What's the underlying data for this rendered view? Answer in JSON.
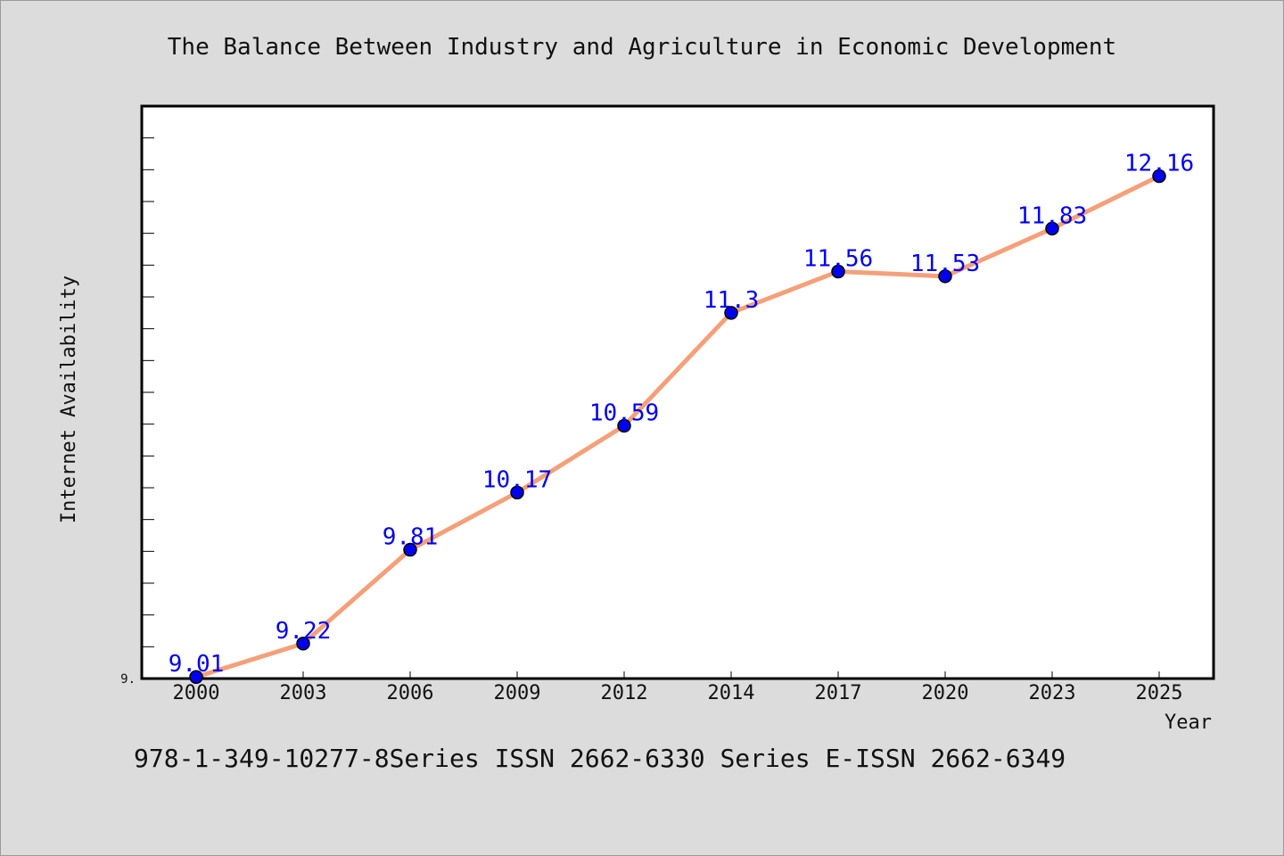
{
  "chart_data": {
    "type": "line",
    "title": "The Balance Between Industry and Agriculture in Economic Development",
    "xlabel": "Year",
    "ylabel": "Internet Availability",
    "categories": [
      "2000",
      "2003",
      "2006",
      "2009",
      "2012",
      "2014",
      "2017",
      "2020",
      "2023",
      "2025"
    ],
    "values": [
      9.01,
      9.22,
      9.81,
      10.17,
      10.59,
      11.3,
      11.56,
      11.53,
      11.83,
      12.16
    ],
    "data_labels": [
      "9.01",
      "9.22",
      "9.81",
      "10.17",
      "10.59",
      "11.3",
      "11.56",
      "11.53",
      "11.83",
      "12.16"
    ],
    "ylim": [
      9.0,
      12.6
    ],
    "ytick_labels": [
      "9."
    ],
    "grid": false,
    "colors": {
      "line": "#f4a07a",
      "marker": "#0000ee",
      "label": "#0000ee",
      "background": "#dcdcdc",
      "plot_bg": "#ffffff"
    }
  },
  "footer": {
    "text": "978-1-349-10277-8Series ISSN 2662-6330 Series E-ISSN 2662-6349"
  }
}
